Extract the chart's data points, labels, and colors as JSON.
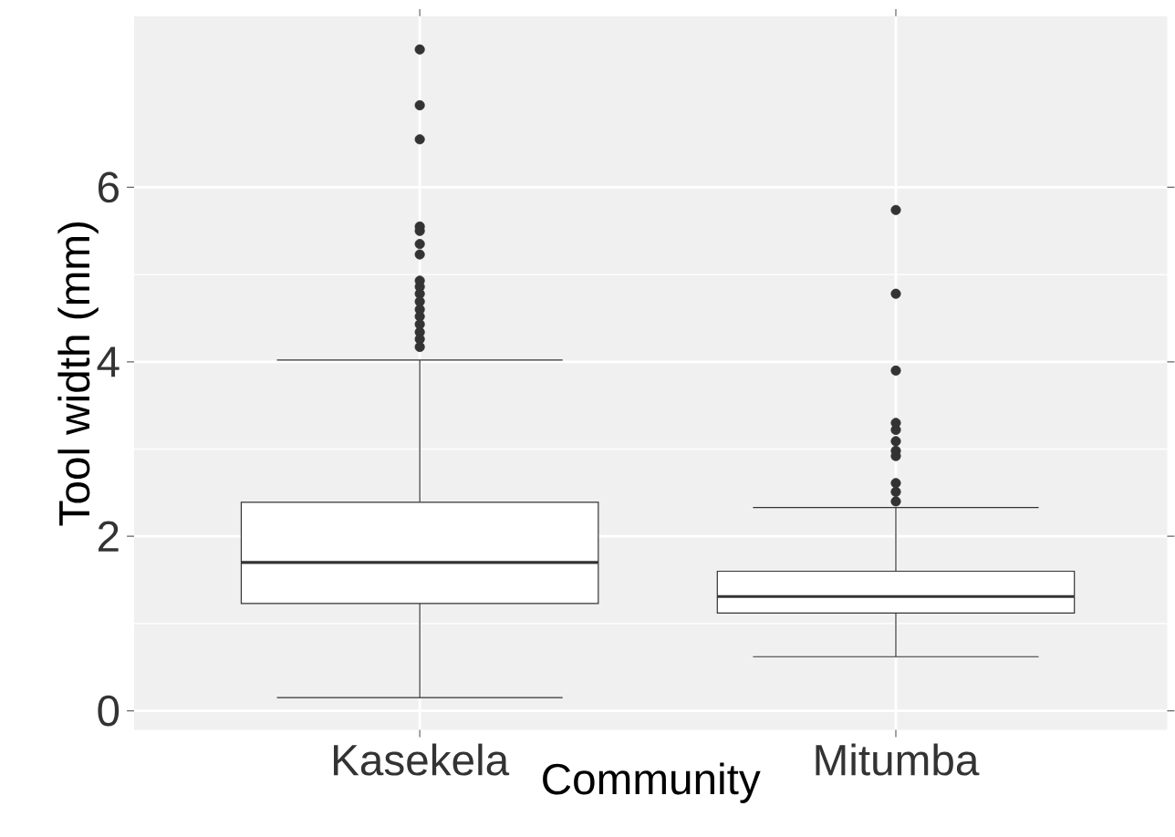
{
  "chart_data": {
    "type": "box",
    "xlabel": "Community",
    "ylabel": "Tool width (mm)",
    "categories": [
      "Kasekela",
      "Mitumba"
    ],
    "boxes": [
      {
        "low": 0.15,
        "q1": 1.23,
        "median": 1.7,
        "q3": 2.39,
        "high": 4.02,
        "outliers": [
          7.58,
          6.94,
          6.55,
          5.55,
          5.5,
          5.35,
          5.23,
          4.93,
          4.86,
          4.78,
          4.69,
          4.6,
          4.52,
          4.43,
          4.34,
          4.26,
          4.17
        ]
      },
      {
        "low": 0.62,
        "q1": 1.12,
        "median": 1.31,
        "q3": 1.6,
        "high": 2.33,
        "outliers": [
          5.74,
          4.78,
          3.9,
          3.3,
          3.22,
          3.09,
          2.98,
          2.92,
          2.61,
          2.51,
          2.4
        ]
      }
    ],
    "color": "#333333",
    "ylim": [
      -0.22,
      7.96
    ],
    "yticks": [
      0,
      2,
      4,
      6
    ],
    "grid": true
  }
}
